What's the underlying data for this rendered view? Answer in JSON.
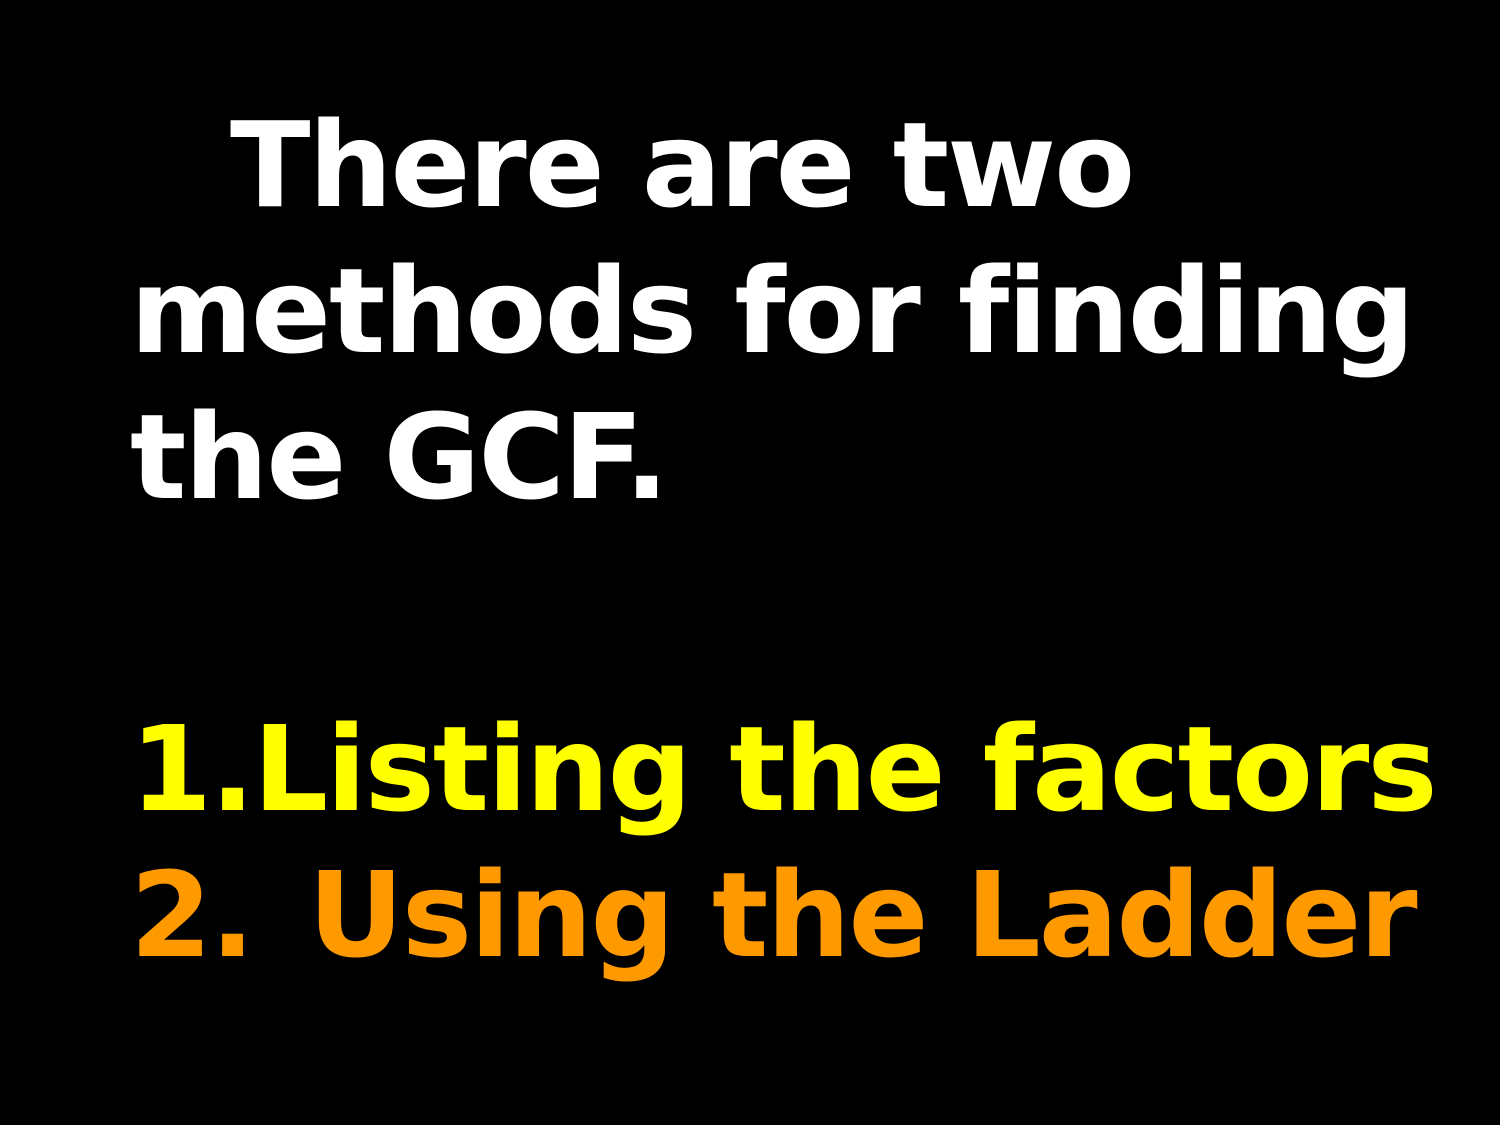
{
  "intro": {
    "line1": "There are two",
    "line2": "methods for finding",
    "line3": "the GCF."
  },
  "methods": [
    {
      "number": "1.",
      "label": "Listing the factors",
      "color": "#ffff00"
    },
    {
      "number": "2.",
      "label": "Using the Ladder",
      "color": "#ff9900"
    }
  ],
  "colors": {
    "background": "#000000",
    "intro_text": "#ffffff"
  }
}
